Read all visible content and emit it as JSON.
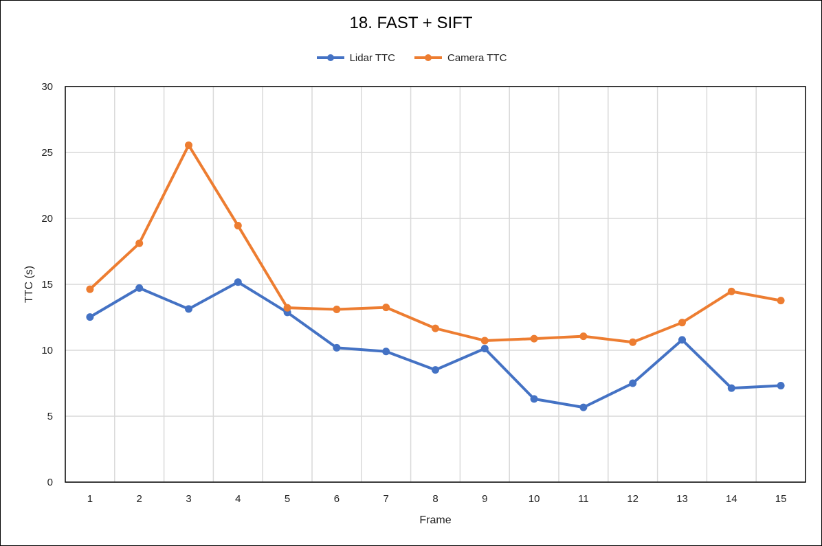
{
  "chart_data": {
    "type": "line",
    "title": "18. FAST + SIFT",
    "xlabel": "Frame",
    "ylabel": "TTC (s)",
    "categories": [
      "1",
      "2",
      "3",
      "4",
      "5",
      "6",
      "7",
      "8",
      "9",
      "10",
      "11",
      "12",
      "13",
      "14",
      "15"
    ],
    "ylim": [
      0,
      30
    ],
    "yticks": [
      0,
      5,
      10,
      15,
      20,
      25,
      30
    ],
    "grid": true,
    "legend_position": "top",
    "series": [
      {
        "name": "Lidar TTC",
        "color": "#4472C4",
        "values": [
          12.52,
          14.72,
          13.13,
          15.17,
          12.87,
          10.19,
          9.91,
          8.51,
          10.13,
          6.31,
          5.67,
          7.5,
          10.79,
          7.13,
          7.32
        ]
      },
      {
        "name": "Camera TTC",
        "color": "#ED7D31",
        "values": [
          14.63,
          18.11,
          25.55,
          19.45,
          13.22,
          13.1,
          13.25,
          11.66,
          10.73,
          10.88,
          11.06,
          10.61,
          12.1,
          14.46,
          13.77
        ]
      }
    ]
  }
}
